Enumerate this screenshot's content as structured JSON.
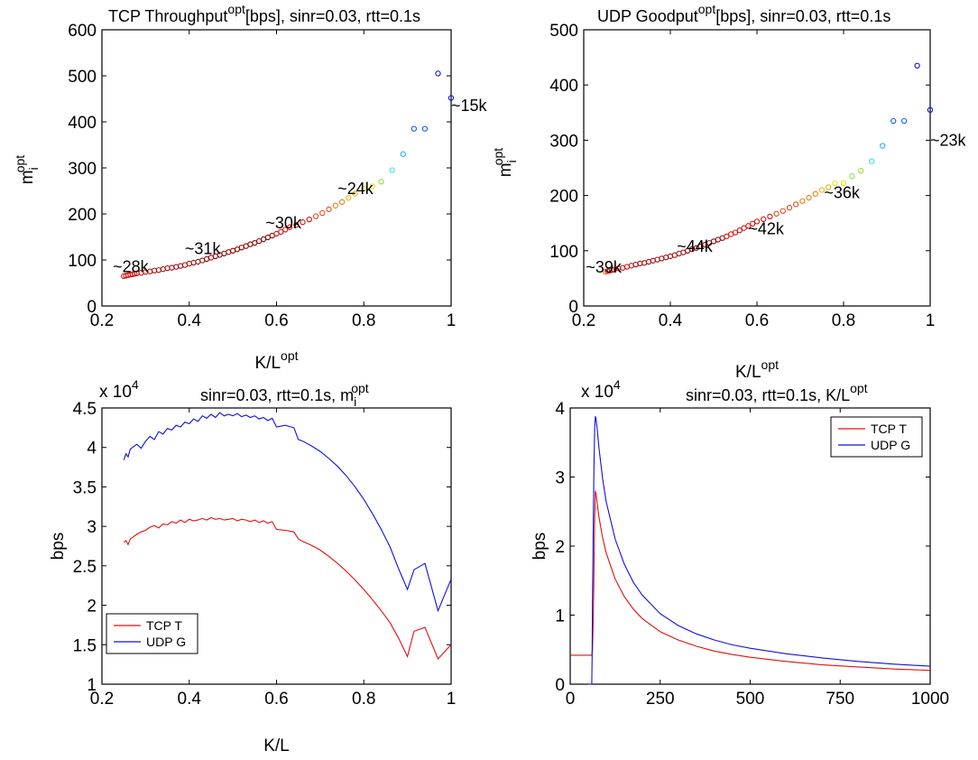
{
  "chart_data": [
    {
      "id": "p1",
      "type": "scatter",
      "title": {
        "main": "TCP Throughput",
        "sup": "opt",
        "rest": "[bps], sinr=0.03, rtt=0.1s"
      },
      "xlabel": {
        "main": "K/L",
        "sup": "opt"
      },
      "ylabel": {
        "main": "m",
        "sub": "i",
        "sup": "opt"
      },
      "xlim": [
        0.2,
        1
      ],
      "ylim": [
        0,
        600
      ],
      "xticks": [
        "0.2",
        "0.4",
        "0.6",
        "0.8",
        "1"
      ],
      "xtick_values": [
        0.2,
        0.4,
        0.6,
        0.8,
        1
      ],
      "yticks": [
        "0",
        "100",
        "200",
        "300",
        "400",
        "500",
        "600"
      ],
      "ytick_values": [
        0,
        100,
        200,
        300,
        400,
        500,
        600
      ],
      "marker_colors": [
        "#d01010",
        "#a01010",
        "#8b0000",
        "#e04a1a",
        "#f07a10",
        "#f0b010",
        "#e8e020",
        "#90e040",
        "#40e0d0",
        "#20b0e8",
        "#1060e0",
        "#1010c0"
      ],
      "points": [
        [
          0.25,
          65,
          0
        ],
        [
          0.255,
          66,
          0
        ],
        [
          0.26,
          67,
          0
        ],
        [
          0.265,
          68,
          0
        ],
        [
          0.27,
          69,
          0
        ],
        [
          0.275,
          70,
          0
        ],
        [
          0.28,
          71,
          0
        ],
        [
          0.29,
          72,
          0
        ],
        [
          0.3,
          74,
          0
        ],
        [
          0.31,
          75,
          0
        ],
        [
          0.32,
          77,
          1
        ],
        [
          0.33,
          78,
          1
        ],
        [
          0.34,
          80,
          1
        ],
        [
          0.35,
          82,
          1
        ],
        [
          0.36,
          83,
          1
        ],
        [
          0.37,
          85,
          1
        ],
        [
          0.38,
          87,
          1
        ],
        [
          0.39,
          89,
          1
        ],
        [
          0.4,
          92,
          1
        ],
        [
          0.41,
          94,
          1
        ],
        [
          0.42,
          96,
          1
        ],
        [
          0.43,
          99,
          1
        ],
        [
          0.44,
          102,
          2
        ],
        [
          0.45,
          105,
          2
        ],
        [
          0.46,
          108,
          2
        ],
        [
          0.47,
          111,
          2
        ],
        [
          0.48,
          114,
          2
        ],
        [
          0.49,
          117,
          2
        ],
        [
          0.5,
          120,
          2
        ],
        [
          0.51,
          123,
          2
        ],
        [
          0.52,
          127,
          2
        ],
        [
          0.53,
          130,
          2
        ],
        [
          0.54,
          134,
          2
        ],
        [
          0.55,
          137,
          2
        ],
        [
          0.56,
          141,
          2
        ],
        [
          0.57,
          145,
          2
        ],
        [
          0.58,
          149,
          2
        ],
        [
          0.59,
          153,
          2
        ],
        [
          0.6,
          157,
          0
        ],
        [
          0.61,
          161,
          0
        ],
        [
          0.62,
          166,
          0
        ],
        [
          0.63,
          171,
          0
        ],
        [
          0.645,
          176,
          0
        ],
        [
          0.66,
          182,
          0
        ],
        [
          0.675,
          188,
          0
        ],
        [
          0.69,
          195,
          3
        ],
        [
          0.705,
          202,
          3
        ],
        [
          0.72,
          210,
          3
        ],
        [
          0.735,
          218,
          4
        ],
        [
          0.75,
          226,
          4
        ],
        [
          0.765,
          235,
          5
        ],
        [
          0.78,
          244,
          5
        ],
        [
          0.8,
          255,
          6
        ],
        [
          0.82,
          260,
          6
        ],
        [
          0.84,
          270,
          7
        ],
        [
          0.865,
          295,
          8
        ],
        [
          0.89,
          330,
          9
        ],
        [
          0.915,
          385,
          10
        ],
        [
          0.94,
          385,
          10
        ],
        [
          0.97,
          505,
          11
        ],
        [
          1.0,
          452,
          11
        ]
      ],
      "annotations": [
        {
          "text": "~15k",
          "x": 1.0,
          "y": 435
        },
        {
          "text": "~24k",
          "x": 0.74,
          "y": 255
        },
        {
          "text": "~30k",
          "x": 0.575,
          "y": 180
        },
        {
          "text": "~31k",
          "x": 0.39,
          "y": 125
        },
        {
          "text": "~28k",
          "x": 0.225,
          "y": 85
        }
      ]
    },
    {
      "id": "p2",
      "type": "scatter",
      "title": {
        "main": "UDP Goodput",
        "sup": "opt",
        "rest": "[bps], sinr=0.03, rtt=0.1s"
      },
      "xlabel": {
        "main": "K/L",
        "sup": "opt"
      },
      "ylabel": {
        "main": "m",
        "sub": "i",
        "sup": "opt"
      },
      "xlim": [
        0.2,
        1
      ],
      "ylim": [
        0,
        500
      ],
      "xticks": [
        "0.2",
        "0.4",
        "0.6",
        "0.8",
        "1"
      ],
      "xtick_values": [
        0.2,
        0.4,
        0.6,
        0.8,
        1
      ],
      "yticks": [
        "0",
        "100",
        "200",
        "300",
        "400",
        "500"
      ],
      "ytick_values": [
        0,
        100,
        200,
        300,
        400,
        500
      ],
      "marker_colors": [
        "#d01010",
        "#a01010",
        "#8b0000",
        "#e04a1a",
        "#f07a10",
        "#f0b010",
        "#e8e020",
        "#90e040",
        "#40e0d0",
        "#20b0e8",
        "#1060e0",
        "#1010c0"
      ],
      "points": [
        [
          0.25,
          62,
          4
        ],
        [
          0.255,
          63,
          0
        ],
        [
          0.26,
          64,
          0
        ],
        [
          0.265,
          65,
          0
        ],
        [
          0.27,
          66,
          0
        ],
        [
          0.28,
          68,
          0
        ],
        [
          0.29,
          69,
          0
        ],
        [
          0.3,
          71,
          0
        ],
        [
          0.31,
          73,
          0
        ],
        [
          0.32,
          75,
          1
        ],
        [
          0.33,
          77,
          1
        ],
        [
          0.34,
          78,
          1
        ],
        [
          0.35,
          80,
          1
        ],
        [
          0.36,
          82,
          1
        ],
        [
          0.37,
          84,
          1
        ],
        [
          0.38,
          86,
          1
        ],
        [
          0.39,
          88,
          1
        ],
        [
          0.4,
          90,
          1
        ],
        [
          0.41,
          92,
          1
        ],
        [
          0.42,
          95,
          1
        ],
        [
          0.43,
          97,
          1
        ],
        [
          0.44,
          100,
          2
        ],
        [
          0.45,
          103,
          2
        ],
        [
          0.46,
          105,
          2
        ],
        [
          0.47,
          108,
          2
        ],
        [
          0.48,
          111,
          2
        ],
        [
          0.49,
          114,
          2
        ],
        [
          0.5,
          117,
          2
        ],
        [
          0.51,
          120,
          2
        ],
        [
          0.52,
          123,
          2
        ],
        [
          0.53,
          126,
          0
        ],
        [
          0.54,
          130,
          0
        ],
        [
          0.55,
          133,
          0
        ],
        [
          0.56,
          137,
          0
        ],
        [
          0.57,
          141,
          0
        ],
        [
          0.58,
          145,
          0
        ],
        [
          0.59,
          149,
          0
        ],
        [
          0.6,
          153,
          0
        ],
        [
          0.615,
          157,
          0
        ],
        [
          0.63,
          162,
          0
        ],
        [
          0.645,
          167,
          3
        ],
        [
          0.66,
          172,
          3
        ],
        [
          0.675,
          178,
          3
        ],
        [
          0.69,
          184,
          3
        ],
        [
          0.705,
          190,
          4
        ],
        [
          0.72,
          196,
          4
        ],
        [
          0.735,
          203,
          4
        ],
        [
          0.75,
          210,
          5
        ],
        [
          0.765,
          215,
          5
        ],
        [
          0.78,
          222,
          6
        ],
        [
          0.8,
          222,
          6
        ],
        [
          0.82,
          235,
          7
        ],
        [
          0.84,
          245,
          7
        ],
        [
          0.865,
          262,
          8
        ],
        [
          0.89,
          290,
          9
        ],
        [
          0.915,
          335,
          10
        ],
        [
          0.94,
          335,
          10
        ],
        [
          0.97,
          435,
          11
        ],
        [
          1.0,
          355,
          11
        ]
      ],
      "annotations": [
        {
          "text": "~23k",
          "x": 1.0,
          "y": 300
        },
        {
          "text": "~36k",
          "x": 0.755,
          "y": 205
        },
        {
          "text": "~42k",
          "x": 0.58,
          "y": 140
        },
        {
          "text": "~44k",
          "x": 0.415,
          "y": 108
        },
        {
          "text": "~39k",
          "x": 0.205,
          "y": 70
        }
      ]
    },
    {
      "id": "p3",
      "type": "line",
      "title": {
        "main": "sinr=0.03, rtt=0.1s, m",
        "sub": "i",
        "sup": "opt"
      },
      "xlabel": {
        "main": "K/L"
      },
      "ylabel": {
        "main": "bps"
      },
      "exponent_label": {
        "main": "x 10",
        "sup": "4"
      },
      "xlim": [
        0.2,
        1
      ],
      "ylim": [
        1,
        4.5
      ],
      "xticks": [
        "0.2",
        "0.4",
        "0.6",
        "0.8",
        "1"
      ],
      "xtick_values": [
        0.2,
        0.4,
        0.6,
        0.8,
        1
      ],
      "yticks": [
        "1",
        "1.5",
        "2",
        "2.5",
        "3",
        "3.5",
        "4",
        "4.5"
      ],
      "ytick_values": [
        1,
        1.5,
        2,
        2.5,
        3,
        3.5,
        4,
        4.5
      ],
      "legend": {
        "position": "lower-left",
        "entries": [
          "TCP T",
          "UDP G"
        ]
      },
      "series": [
        {
          "name": "TCP T",
          "color": "#e01010",
          "x": [
            0.25,
            0.255,
            0.26,
            0.265,
            0.27,
            0.28,
            0.29,
            0.3,
            0.31,
            0.32,
            0.33,
            0.34,
            0.35,
            0.36,
            0.37,
            0.38,
            0.39,
            0.4,
            0.41,
            0.42,
            0.43,
            0.44,
            0.45,
            0.46,
            0.47,
            0.48,
            0.49,
            0.5,
            0.51,
            0.52,
            0.53,
            0.54,
            0.55,
            0.56,
            0.57,
            0.58,
            0.59,
            0.6,
            0.62,
            0.64,
            0.65,
            0.66,
            0.68,
            0.7,
            0.72,
            0.74,
            0.76,
            0.78,
            0.8,
            0.82,
            0.84,
            0.86,
            0.88,
            0.9,
            0.915,
            0.94,
            0.97,
            1.0
          ],
          "y": [
            2.8,
            2.82,
            2.77,
            2.84,
            2.86,
            2.9,
            2.93,
            2.95,
            2.99,
            3.01,
            2.98,
            3.03,
            3.02,
            3.06,
            3.04,
            3.08,
            3.05,
            3.09,
            3.07,
            3.08,
            3.1,
            3.08,
            3.11,
            3.09,
            3.1,
            3.08,
            3.09,
            3.1,
            3.07,
            3.09,
            3.08,
            3.06,
            3.08,
            3.05,
            3.07,
            3.04,
            3.06,
            2.96,
            2.95,
            2.93,
            2.84,
            2.81,
            2.76,
            2.7,
            2.62,
            2.53,
            2.43,
            2.32,
            2.2,
            2.07,
            1.93,
            1.78,
            1.58,
            1.35,
            1.67,
            1.72,
            1.32,
            1.5
          ]
        },
        {
          "name": "UDP G",
          "color": "#1010e0",
          "x": [
            0.25,
            0.255,
            0.26,
            0.265,
            0.27,
            0.28,
            0.29,
            0.3,
            0.31,
            0.32,
            0.33,
            0.34,
            0.35,
            0.36,
            0.37,
            0.38,
            0.39,
            0.4,
            0.41,
            0.42,
            0.43,
            0.44,
            0.45,
            0.46,
            0.47,
            0.48,
            0.49,
            0.5,
            0.51,
            0.52,
            0.53,
            0.54,
            0.55,
            0.56,
            0.57,
            0.58,
            0.59,
            0.6,
            0.62,
            0.64,
            0.65,
            0.66,
            0.68,
            0.7,
            0.72,
            0.74,
            0.76,
            0.78,
            0.8,
            0.82,
            0.84,
            0.86,
            0.88,
            0.9,
            0.915,
            0.94,
            0.97,
            1.0
          ],
          "y": [
            3.84,
            3.92,
            3.88,
            3.98,
            4.0,
            4.04,
            3.99,
            4.08,
            4.14,
            4.1,
            4.2,
            4.17,
            4.24,
            4.22,
            4.28,
            4.26,
            4.32,
            4.3,
            4.36,
            4.33,
            4.4,
            4.37,
            4.42,
            4.38,
            4.44,
            4.4,
            4.42,
            4.4,
            4.43,
            4.39,
            4.41,
            4.38,
            4.4,
            4.36,
            4.38,
            4.34,
            4.37,
            4.26,
            4.28,
            4.25,
            4.1,
            4.08,
            4.02,
            3.95,
            3.86,
            3.76,
            3.64,
            3.5,
            3.34,
            3.16,
            2.96,
            2.74,
            2.46,
            2.2,
            2.45,
            2.53,
            1.93,
            2.33
          ]
        }
      ]
    },
    {
      "id": "p4",
      "type": "line",
      "title": {
        "main": "sinr=0.03, rtt=0.1s, K/L",
        "sup": "opt"
      },
      "xlabel": {
        "main": ""
      },
      "ylabel": {
        "main": "bps"
      },
      "exponent_label": {
        "main": "x 10",
        "sup": "4"
      },
      "xlim": [
        0,
        1000
      ],
      "ylim": [
        0,
        4
      ],
      "xticks": [
        "0",
        "250",
        "500",
        "750",
        "1000"
      ],
      "xtick_values": [
        0,
        250,
        500,
        750,
        1000
      ],
      "yticks": [
        "0",
        "1",
        "2",
        "3",
        "4"
      ],
      "ytick_values": [
        0,
        1,
        2,
        3,
        4
      ],
      "legend": {
        "position": "top-right",
        "entries": [
          "TCP T",
          "UDP G"
        ]
      },
      "series": [
        {
          "name": "TCP T",
          "color": "#e01010",
          "x": [
            0,
            50,
            60,
            62,
            64,
            66,
            68,
            70,
            72,
            75,
            80,
            90,
            100,
            125,
            150,
            175,
            200,
            250,
            300,
            350,
            400,
            450,
            500,
            600,
            700,
            800,
            900,
            1000
          ],
          "y": [
            0.42,
            0.42,
            0.42,
            0.5,
            0.9,
            1.6,
            2.4,
            2.8,
            2.75,
            2.62,
            2.42,
            2.12,
            1.9,
            1.52,
            1.27,
            1.09,
            0.95,
            0.76,
            0.64,
            0.55,
            0.48,
            0.43,
            0.39,
            0.33,
            0.28,
            0.25,
            0.22,
            0.2
          ]
        },
        {
          "name": "UDP G",
          "color": "#1010e0",
          "x": [
            50,
            60,
            61,
            62,
            64,
            66,
            68,
            70,
            72,
            75,
            80,
            90,
            100,
            125,
            150,
            175,
            200,
            250,
            300,
            350,
            400,
            450,
            500,
            600,
            700,
            800,
            900,
            1000
          ],
          "y": [
            0,
            0,
            0.4,
            1.2,
            2.2,
            3.1,
            3.7,
            3.88,
            3.84,
            3.7,
            3.42,
            2.98,
            2.64,
            2.1,
            1.74,
            1.48,
            1.29,
            1.02,
            0.85,
            0.73,
            0.64,
            0.57,
            0.52,
            0.44,
            0.38,
            0.33,
            0.29,
            0.26
          ]
        }
      ]
    }
  ]
}
